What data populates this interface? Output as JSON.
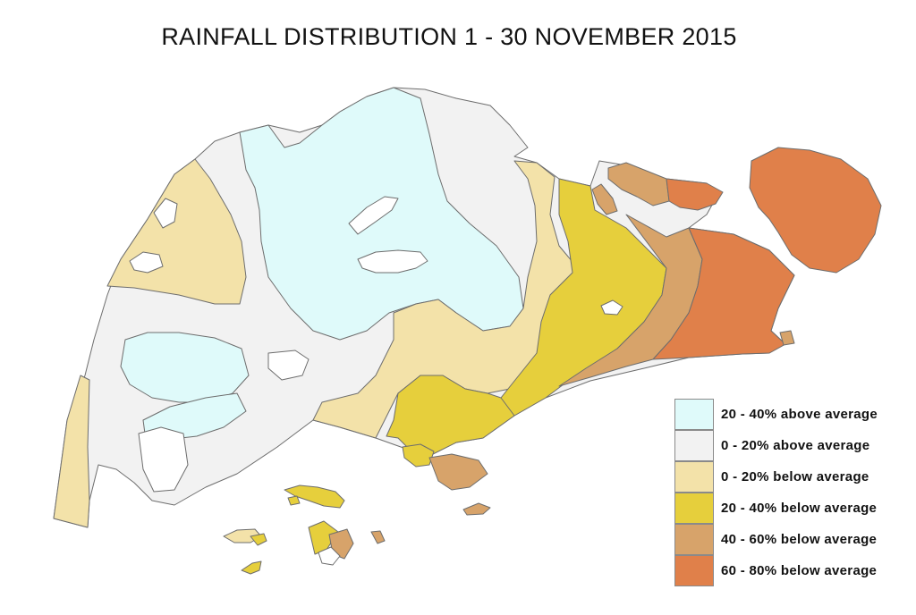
{
  "title": "RAINFALL DISTRIBUTION 1 - 30 NOVEMBER 2015",
  "colors": {
    "above_20_40": "#dffafa",
    "above_0_20": "#f2f2f2",
    "below_0_20": "#f3e2a9",
    "below_20_40": "#e6cf3c",
    "below_40_60": "#d7a36a",
    "below_60_80": "#e0804a",
    "sea": "#ffffff",
    "outline": "#6d6d6d"
  },
  "legend": [
    {
      "label": "20 - 40% above average",
      "color": "#dffafa"
    },
    {
      "label": "0 - 20% above average",
      "color": "#f2f2f2"
    },
    {
      "label": "0 - 20% below average",
      "color": "#f3e2a9"
    },
    {
      "label": "20 - 40% below average",
      "color": "#e6cf3c"
    },
    {
      "label": "40 - 60% below average",
      "color": "#d7a36a"
    },
    {
      "label": "60 - 80% below average",
      "color": "#e0804a"
    }
  ]
}
